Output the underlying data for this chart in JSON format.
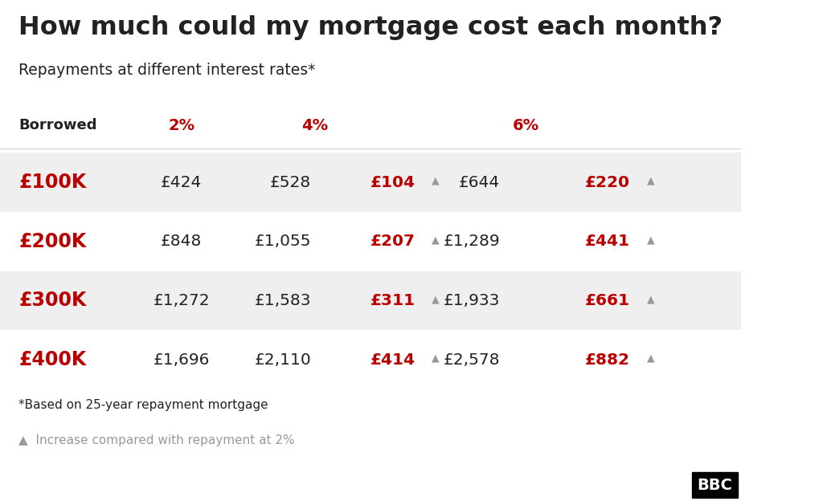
{
  "title": "How much could my mortgage cost each month?",
  "subtitle": "Repayments at different interest rates*",
  "bg_color": "#ffffff",
  "row_bg_colors": [
    "#efefef",
    "#ffffff",
    "#efefef",
    "#ffffff"
  ],
  "red_color": "#bb0000",
  "dark_color": "#222222",
  "gray_color": "#999999",
  "header_label": "Borrowed",
  "rows": [
    {
      "borrowed": "£100K",
      "rate2": "£424",
      "rate4": "£528",
      "diff4": "£104",
      "rate6": "£644",
      "diff6": "£220"
    },
    {
      "borrowed": "£200K",
      "rate2": "£848",
      "rate4": "£1,055",
      "diff4": "£207",
      "rate6": "£1,289",
      "diff6": "£441"
    },
    {
      "borrowed": "£300K",
      "rate2": "£1,272",
      "rate4": "£1,583",
      "diff4": "£311",
      "rate6": "£1,933",
      "diff6": "£661"
    },
    {
      "borrowed": "£400K",
      "rate2": "£1,696",
      "rate4": "£2,110",
      "diff4": "£414",
      "rate6": "£2,578",
      "diff6": "£882"
    }
  ],
  "footnote1": "*Based on 25-year repayment mortgage",
  "footnote2": "▲  Increase compared with repayment at 2%"
}
